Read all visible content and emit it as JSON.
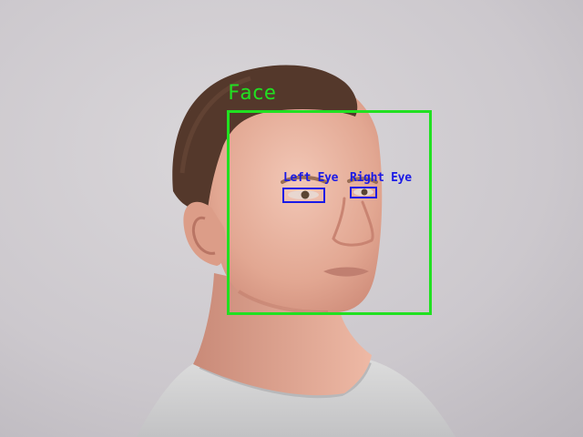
{
  "colors": {
    "face_box": "#21e021",
    "eye_box": "#1a1ae6",
    "background": "#cfcbd0"
  },
  "detections": {
    "face": {
      "label": "Face"
    },
    "left_eye": {
      "label": "Left Eye"
    },
    "right_eye": {
      "label": "Right Eye"
    }
  }
}
